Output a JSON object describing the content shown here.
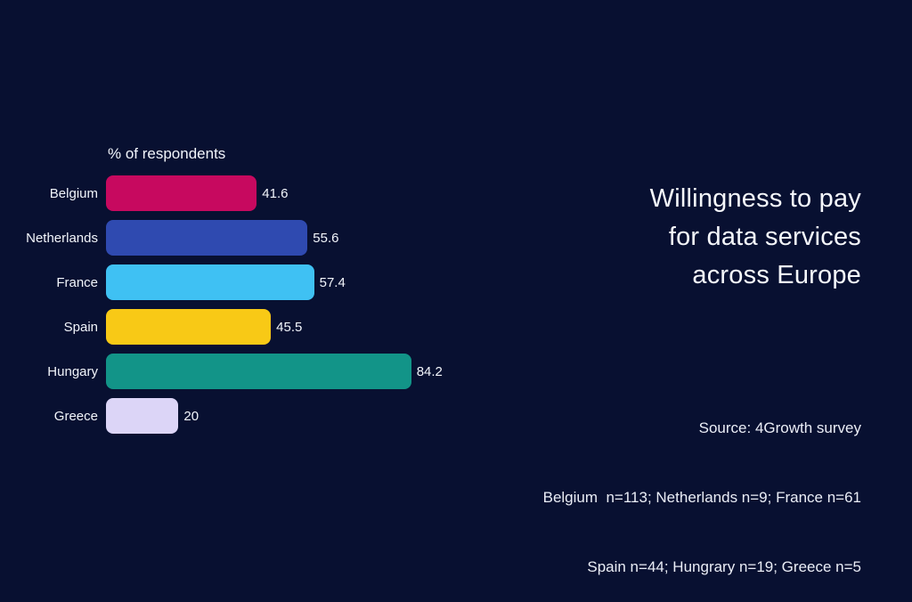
{
  "colors": {
    "background": "#081031",
    "text": "#F5F7FB"
  },
  "chart": {
    "header": "% of respondents"
  },
  "title": {
    "lines": [
      "Willingness to pay",
      "for data services",
      "across Europe"
    ]
  },
  "source": {
    "lines": [
      "Source: 4Growth survey",
      "Belgium  n=113; Netherlands n=9; France n=61",
      "Spain n=44; Hungrary n=19; Greece n=5"
    ]
  },
  "chart_data": {
    "type": "bar",
    "orientation": "horizontal",
    "title": "Willingness to pay for data services across Europe",
    "xlabel": "% of respondents",
    "xlim": [
      0,
      100
    ],
    "grid": false,
    "legend": "none",
    "categories": [
      "Belgium",
      "Netherlands",
      "France",
      "Spain",
      "Hungary",
      "Greece"
    ],
    "values": [
      41.6,
      55.6,
      57.4,
      45.5,
      84.2,
      20
    ],
    "value_labels": [
      "41.6",
      "55.6",
      "57.4",
      "45.5",
      "84.2",
      "20"
    ],
    "bar_colors": [
      "#C7095F",
      "#2F4AB0",
      "#3FC1F3",
      "#F8C916",
      "#129488",
      "#DCD5F7"
    ]
  }
}
